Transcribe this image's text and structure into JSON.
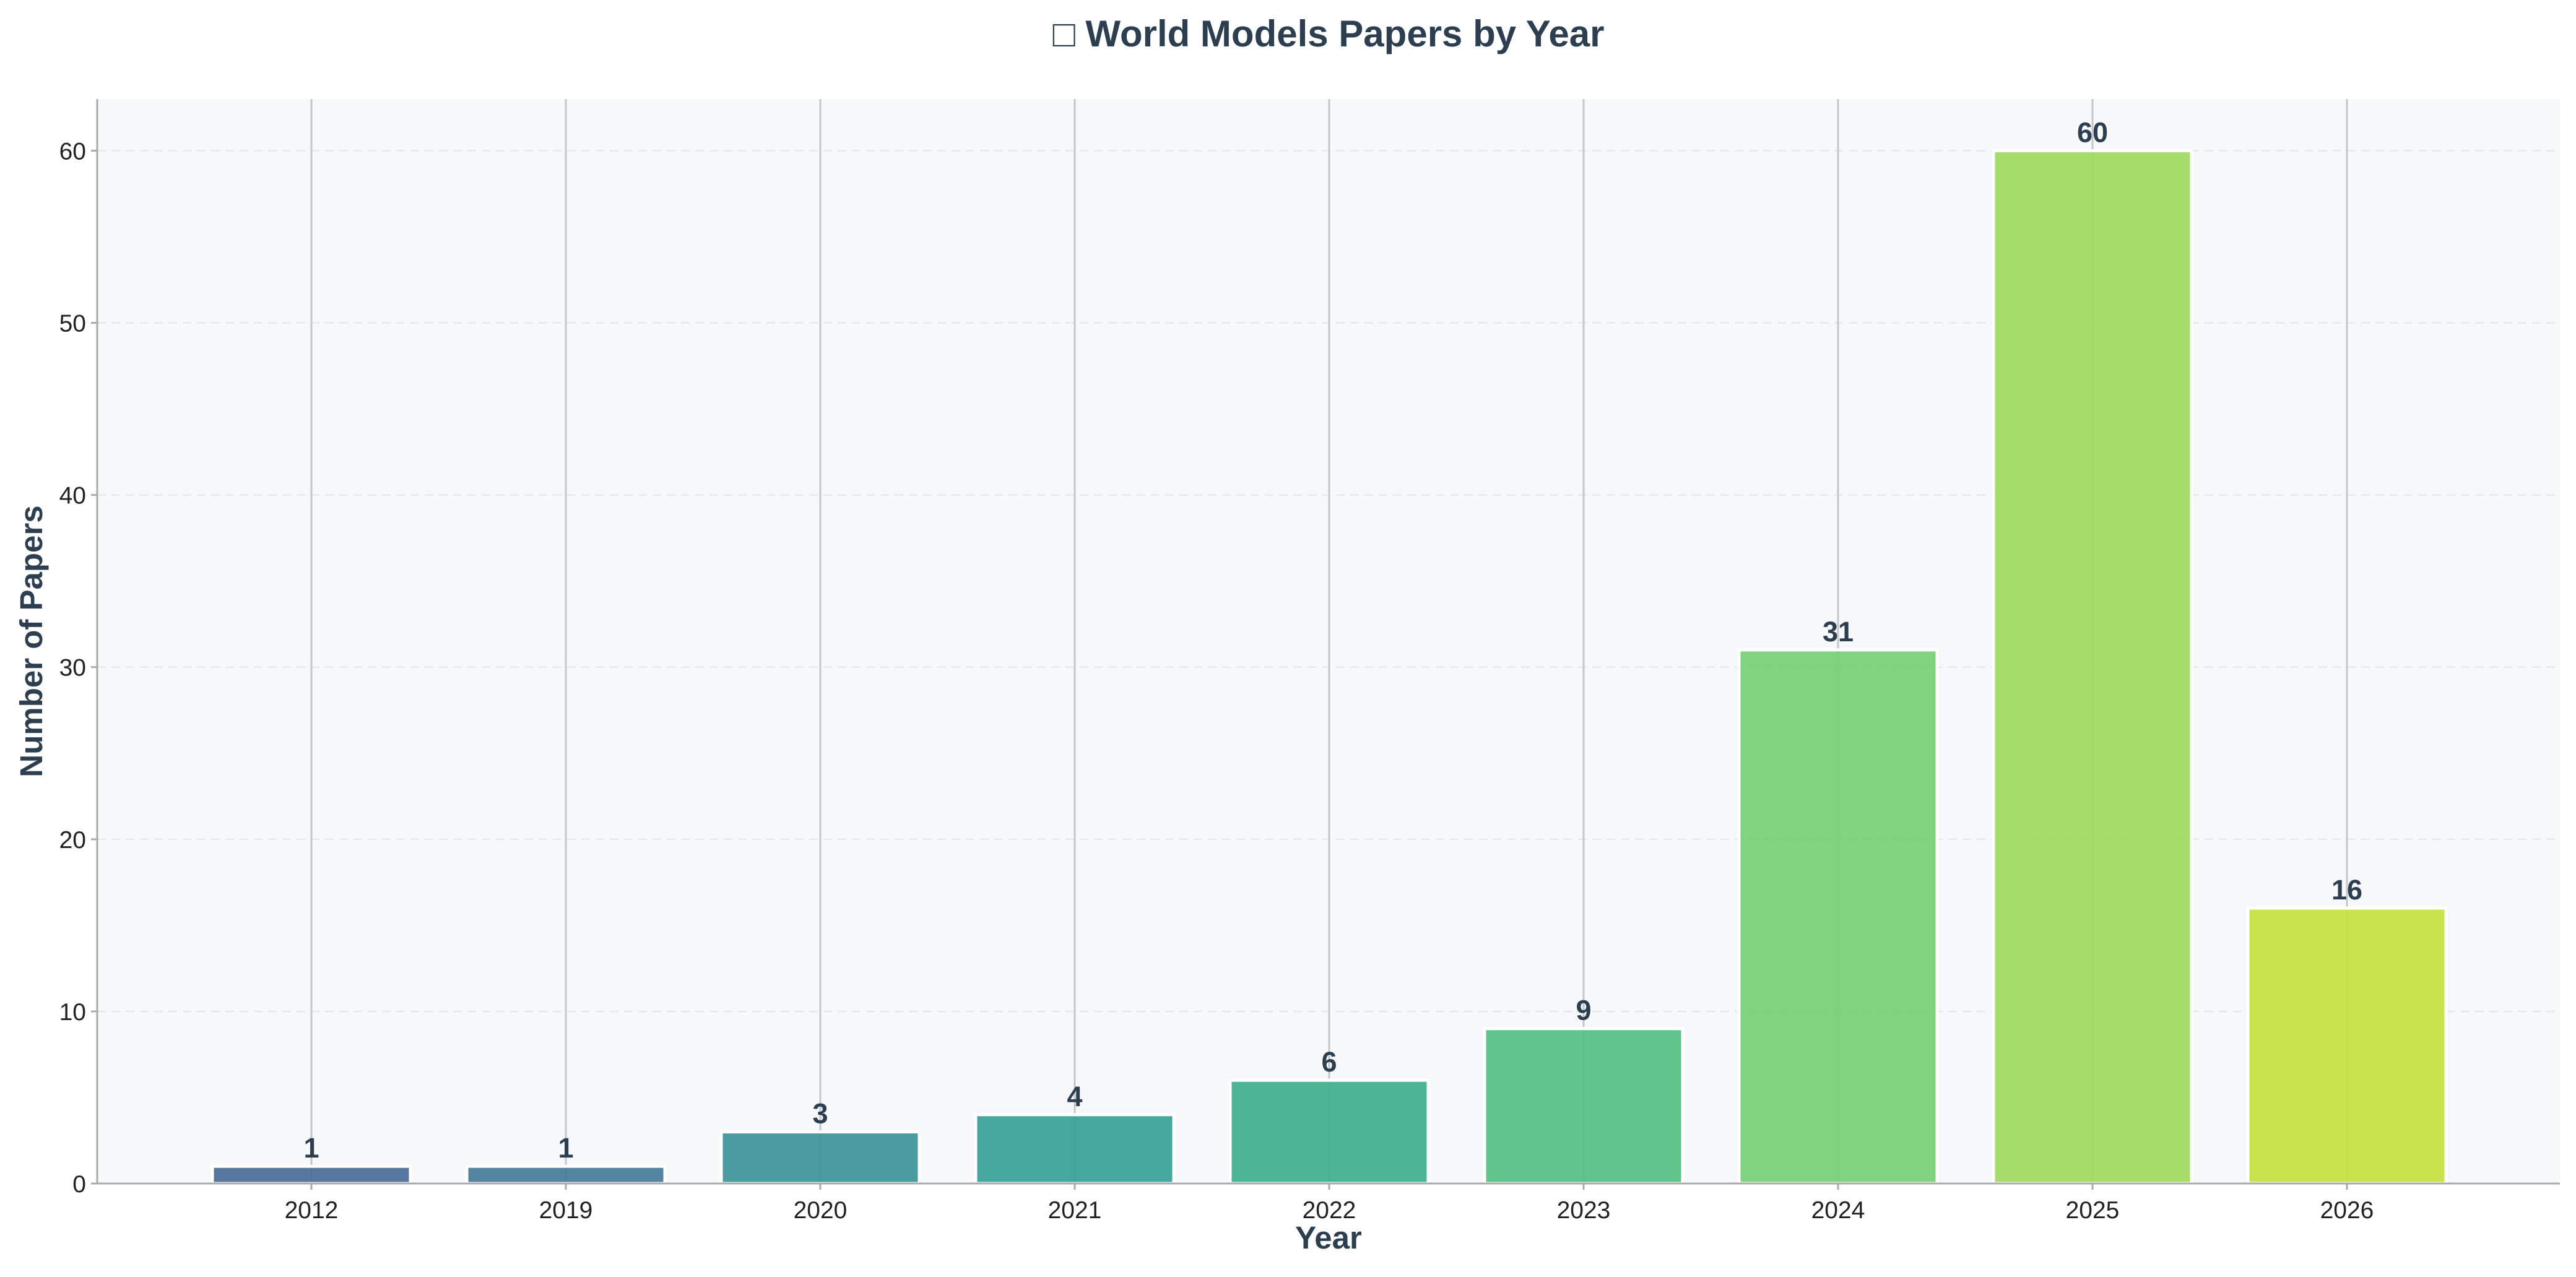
{
  "chart_data": {
    "type": "bar",
    "title": "□ World Models Papers by Year",
    "xlabel": "Year",
    "ylabel": "Number of Papers",
    "categories": [
      "2012",
      "2019",
      "2020",
      "2021",
      "2022",
      "2023",
      "2024",
      "2025",
      "2026"
    ],
    "values": [
      1,
      1,
      3,
      4,
      6,
      9,
      31,
      60,
      16
    ],
    "data_labels": [
      "1",
      "1",
      "3",
      "4",
      "6",
      "9",
      "31",
      "60",
      "16"
    ],
    "ylim": [
      0,
      63
    ],
    "yticks": [
      0,
      10,
      20,
      30,
      40,
      50,
      60
    ],
    "ytick_labels": [
      "0",
      "10",
      "20",
      "30",
      "40",
      "50",
      "60"
    ],
    "grid": {
      "y": "dashed",
      "x": "solid at categories"
    },
    "legend": "none",
    "colors": [
      "#4a6b96",
      "#457b98",
      "#3c9498",
      "#35a095",
      "#3daf8c",
      "#52bf82",
      "#75cf74",
      "#9ed95c",
      "#c4e13e"
    ],
    "background": "#f7f8fa",
    "text_color": "#2c3e50"
  }
}
